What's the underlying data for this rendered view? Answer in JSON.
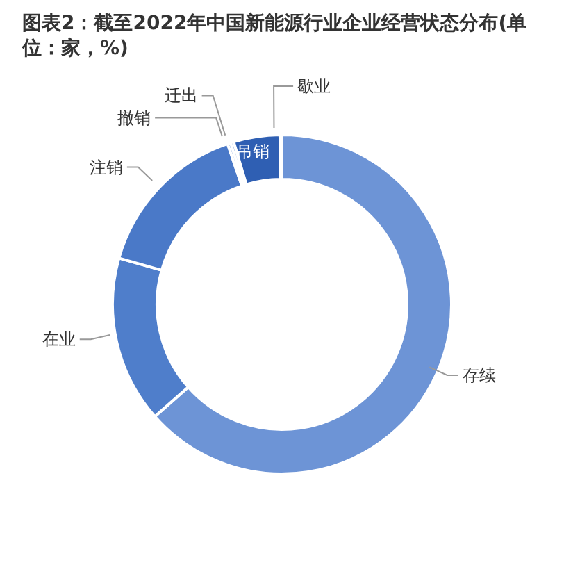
{
  "chart_data": {
    "type": "donut",
    "title": "图表2：截至2022年中国新能源行业企业经营状态分布(单位：家，%)",
    "categories": [
      "存续",
      "在业",
      "注销",
      "撤销",
      "迁出",
      "吊销",
      "歇业"
    ],
    "values": [
      63.5,
      15.9,
      15.4,
      0.3,
      0.3,
      4.4,
      0.2
    ],
    "colors": [
      "#6d94d6",
      "#4f7ecb",
      "#4a79c8",
      "#5b86cf",
      "#5b86cf",
      "#2f5fb3",
      "#5b86cf"
    ]
  }
}
